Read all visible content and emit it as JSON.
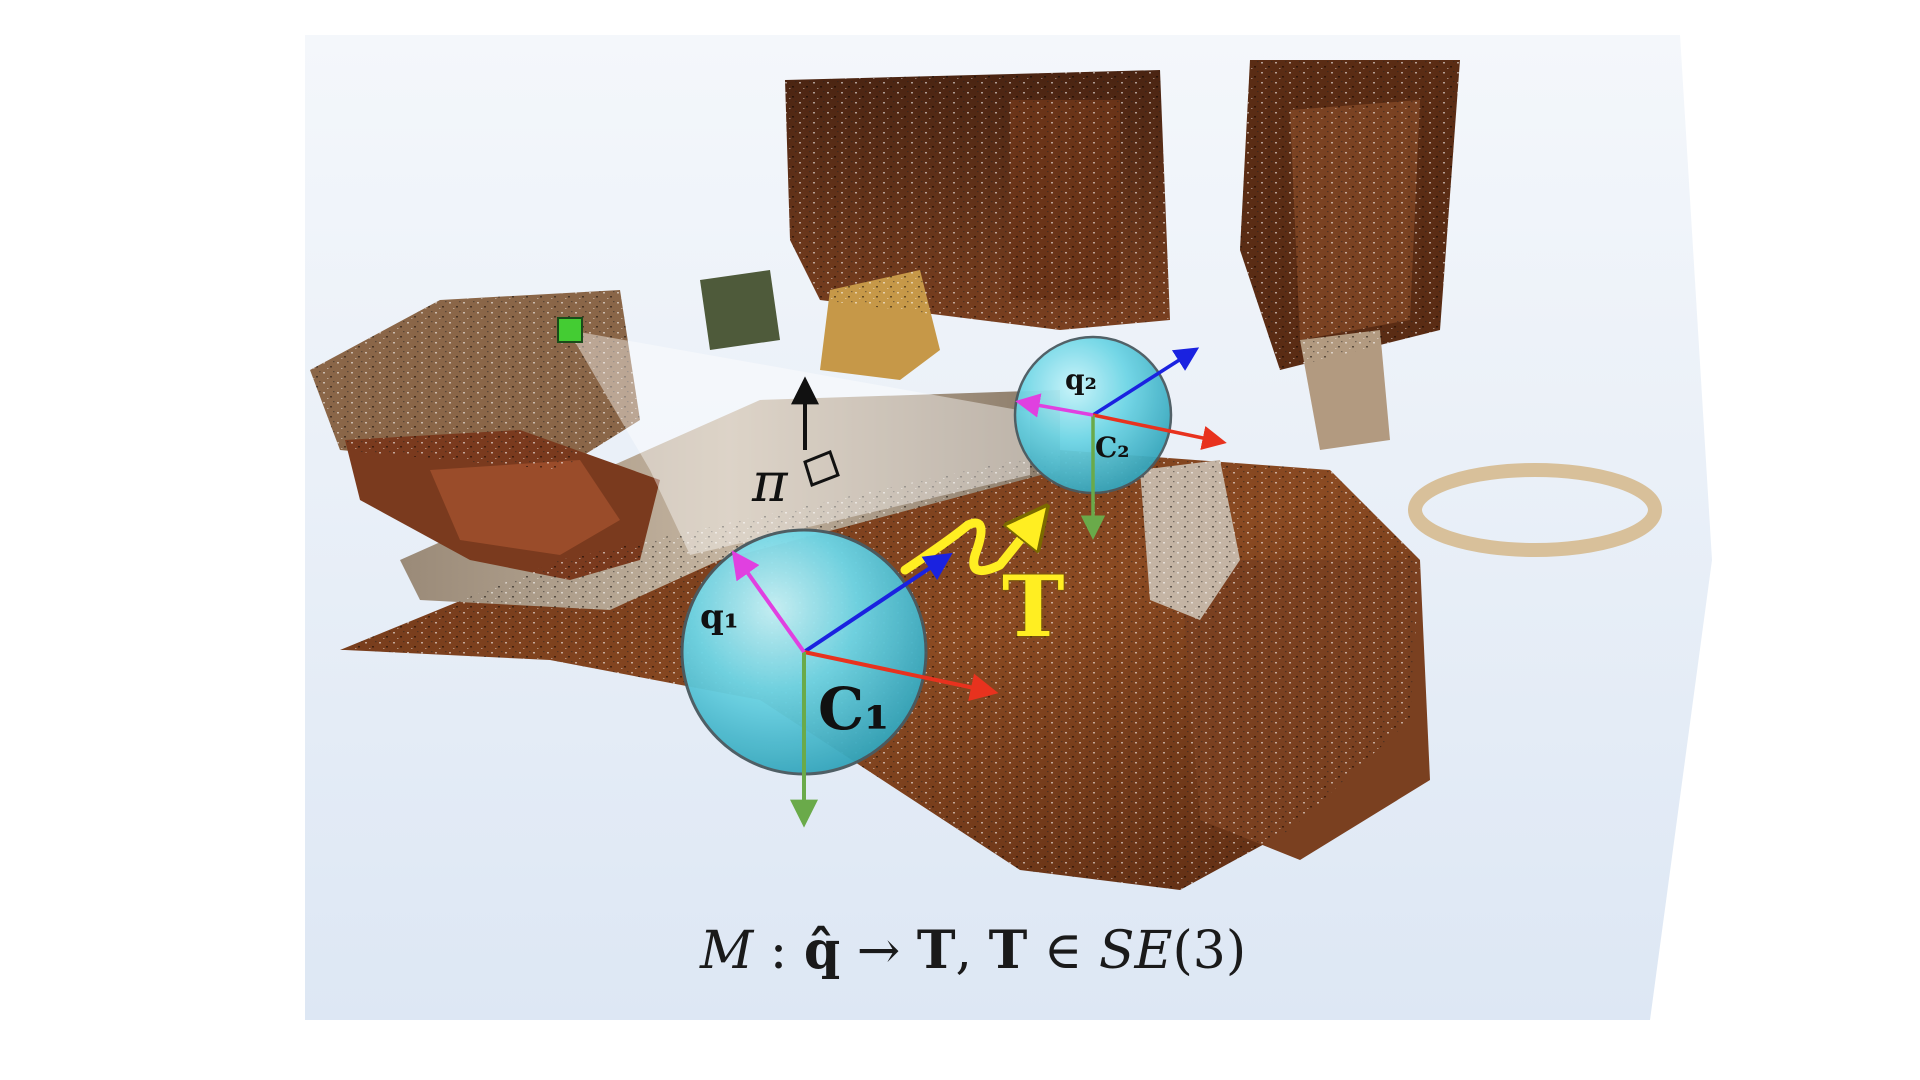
{
  "figure": {
    "background_color": "#e6eef8",
    "colors": {
      "sphere": "#5fd0e0",
      "axis_red": "#e8321e",
      "axis_blue": "#1a22e0",
      "axis_green": "#6aaa4a",
      "axis_magenta": "#e040e0",
      "transform_arrow": "#ffee22",
      "plane_normal": "#111111",
      "keypoint": "#44cc33"
    },
    "labels": {
      "query_1": "q₁",
      "query_2": "q₂",
      "camera_1": "C₁",
      "camera_2": "C₂",
      "plane": "π",
      "transform": "T"
    },
    "mapping": {
      "map": "M",
      "colon": " : ",
      "query": "q̂",
      "arrow": " → ",
      "transform": "T",
      "sep": ",  ",
      "transform_again": "T",
      "in": " ∈ ",
      "group": "SE",
      "group_arg": "(3)"
    }
  }
}
